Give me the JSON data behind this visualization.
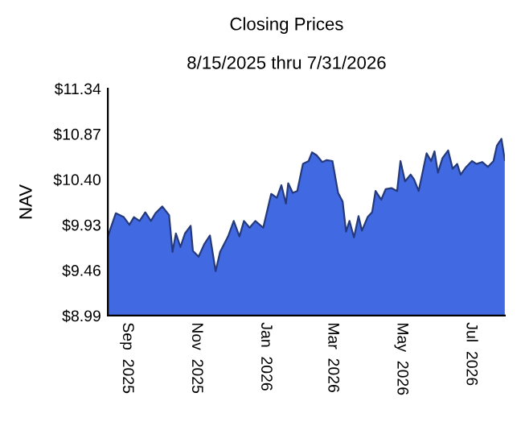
{
  "chart_data": {
    "type": "area",
    "title": "Closing Prices",
    "subtitle": "8/15/2025 thru 7/31/2026",
    "ylabel": "NAV",
    "x": [
      "2025-08-15",
      "2025-08-22",
      "2025-08-29",
      "2025-09-03",
      "2025-09-07",
      "2025-09-12",
      "2025-09-17",
      "2025-09-22",
      "2025-09-26",
      "2025-10-02",
      "2025-10-08",
      "2025-10-11",
      "2025-10-14",
      "2025-10-18",
      "2025-10-22",
      "2025-10-27",
      "2025-10-29",
      "2025-11-03",
      "2025-11-08",
      "2025-11-13",
      "2025-11-18",
      "2025-11-22",
      "2025-11-29",
      "2025-12-04",
      "2025-12-09",
      "2025-12-13",
      "2025-12-18",
      "2025-12-23",
      "2025-12-30",
      "2026-01-06",
      "2026-01-11",
      "2026-01-15",
      "2026-01-19",
      "2026-01-21",
      "2026-01-25",
      "2026-01-29",
      "2026-02-03",
      "2026-02-08",
      "2026-02-11",
      "2026-02-15",
      "2026-02-20",
      "2026-02-24",
      "2026-03-01",
      "2026-03-06",
      "2026-03-10",
      "2026-03-13",
      "2026-03-16",
      "2026-03-20",
      "2026-03-24",
      "2026-03-27",
      "2026-04-01",
      "2026-04-05",
      "2026-04-08",
      "2026-04-13",
      "2026-04-17",
      "2026-04-22",
      "2026-04-27",
      "2026-04-30",
      "2026-05-04",
      "2026-05-09",
      "2026-05-12",
      "2026-05-16",
      "2026-05-23",
      "2026-05-27",
      "2026-05-30",
      "2026-06-02",
      "2026-06-06",
      "2026-06-11",
      "2026-06-15",
      "2026-06-19",
      "2026-06-22",
      "2026-06-27",
      "2026-07-02",
      "2026-07-06",
      "2026-07-11",
      "2026-07-16",
      "2026-07-21",
      "2026-07-24",
      "2026-07-28",
      "2026-07-31"
    ],
    "series": [
      {
        "color": "#4169e1",
        "values": [
          9.81,
          10.05,
          10.01,
          9.93,
          10.01,
          9.97,
          10.06,
          9.97,
          10.05,
          10.12,
          10.03,
          9.65,
          9.84,
          9.7,
          9.84,
          9.92,
          9.66,
          9.6,
          9.73,
          9.82,
          9.45,
          9.65,
          9.81,
          9.97,
          9.81,
          9.97,
          9.9,
          9.97,
          9.9,
          10.25,
          10.21,
          10.34,
          10.15,
          10.36,
          10.26,
          10.28,
          10.56,
          10.59,
          10.68,
          10.65,
          10.58,
          10.6,
          10.59,
          10.26,
          10.17,
          9.86,
          9.97,
          9.8,
          10.02,
          9.87,
          10.01,
          10.06,
          10.28,
          10.19,
          10.3,
          10.31,
          10.28,
          10.59,
          10.38,
          10.45,
          10.4,
          10.28,
          10.67,
          10.59,
          10.69,
          10.47,
          10.62,
          10.7,
          10.51,
          10.56,
          10.45,
          10.53,
          10.59,
          10.56,
          10.58,
          10.53,
          10.59,
          10.75,
          10.82,
          10.6
        ]
      }
    ],
    "xlim": [
      "2025-08-15",
      "2026-07-31"
    ],
    "xticks": [
      {
        "value": "2025-09-01",
        "label": "Sep  2025"
      },
      {
        "value": "2025-11-01",
        "label": "Nov  2025"
      },
      {
        "value": "2026-01-01",
        "label": "Jan  2026"
      },
      {
        "value": "2026-03-01",
        "label": "Mar  2026"
      },
      {
        "value": "2026-05-01",
        "label": "May  2026"
      },
      {
        "value": "2026-07-01",
        "label": "Jul  2026"
      }
    ],
    "ylim": [
      8.99,
      11.34
    ],
    "yticks": [
      {
        "value": 8.99,
        "label": "$8.99"
      },
      {
        "value": 9.46,
        "label": "$9.46"
      },
      {
        "value": 9.93,
        "label": "$9.93"
      },
      {
        "value": 10.4,
        "label": "$10.40"
      },
      {
        "value": 10.87,
        "label": "$10.87"
      },
      {
        "value": 11.34,
        "label": "$11.34"
      }
    ]
  }
}
